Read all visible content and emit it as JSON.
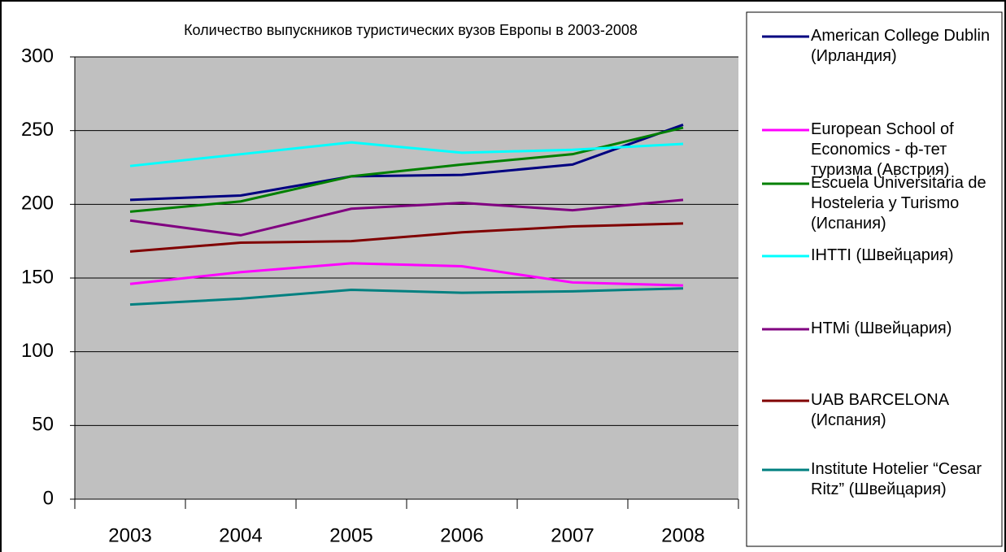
{
  "chart_data": {
    "type": "line",
    "title": "Количество выпускников туристических вузов Европы в 2003-2008",
    "categories": [
      "2003",
      "2004",
      "2005",
      "2006",
      "2007",
      "2008"
    ],
    "ylim": [
      0,
      300
    ],
    "yticks": [
      0,
      50,
      100,
      150,
      200,
      250,
      300
    ],
    "grid": true,
    "series": [
      {
        "name": "American College Dublin (Ирландия)",
        "color": "#000080",
        "values": [
          203,
          206,
          219,
          220,
          227,
          254
        ]
      },
      {
        "name": "European School of Economics - ф-тет туризма  (Австрия)",
        "color": "#ff00ff",
        "values": [
          146,
          154,
          160,
          158,
          147,
          145
        ]
      },
      {
        "name": "Escuela Universitaria de Hosteleria y Turismo (Испания)",
        "color": "#008000",
        "values": [
          195,
          202,
          219,
          227,
          234,
          252
        ]
      },
      {
        "name": "IHTTI (Швейцария)",
        "color": "#00ffff",
        "values": [
          226,
          234,
          242,
          235,
          237,
          241
        ]
      },
      {
        "name": "HTMi (Швейцария)",
        "color": "#800080",
        "values": [
          189,
          179,
          197,
          201,
          196,
          203
        ]
      },
      {
        "name": "UAB BARCELONA (Испания)",
        "color": "#800000",
        "values": [
          168,
          174,
          175,
          181,
          185,
          187
        ]
      },
      {
        "name": "Institute Hotelier “Cesar Ritz” (Швейцария)",
        "color": "#008080",
        "values": [
          132,
          136,
          142,
          140,
          141,
          143
        ]
      }
    ]
  }
}
